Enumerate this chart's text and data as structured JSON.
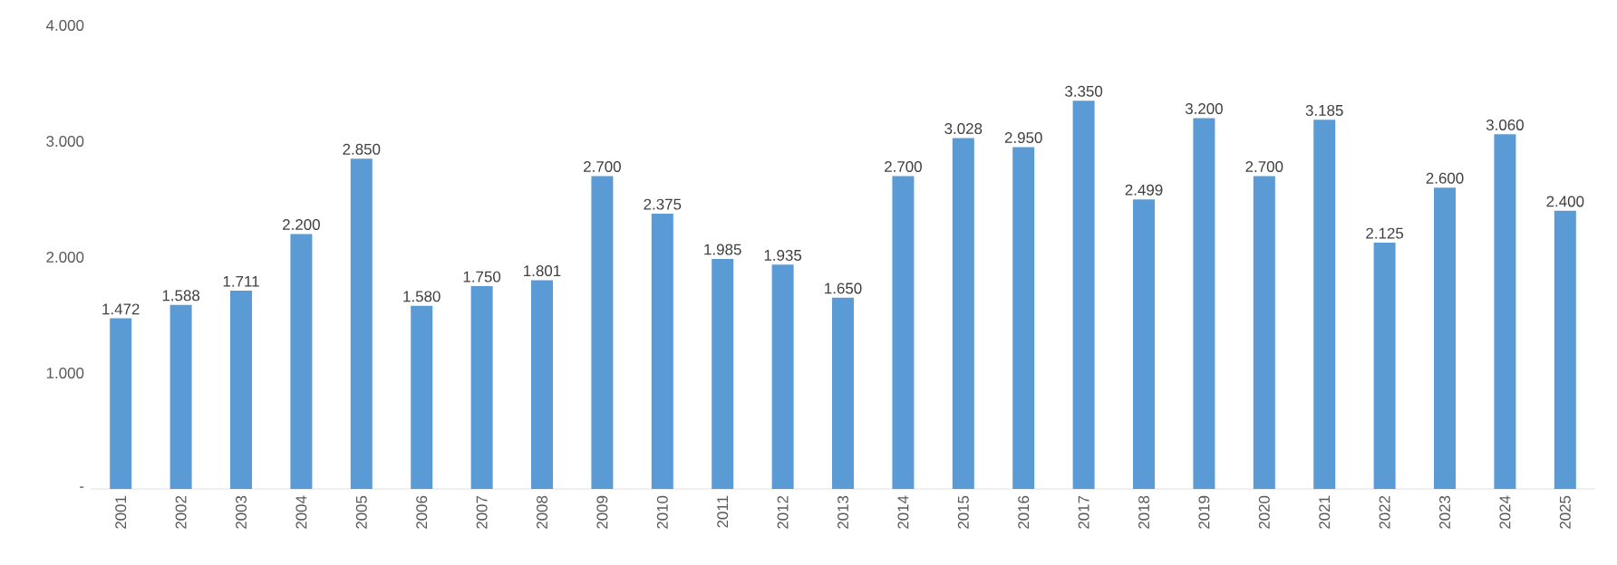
{
  "chart_data": {
    "type": "bar",
    "categories": [
      "2001",
      "2002",
      "2003",
      "2004",
      "2005",
      "2006",
      "2007",
      "2008",
      "2009",
      "2010",
      "2011",
      "2012",
      "2013",
      "2014",
      "2015",
      "2016",
      "2017",
      "2018",
      "2019",
      "2020",
      "2021",
      "2022",
      "2023",
      "2024",
      "2025"
    ],
    "values": [
      1472,
      1588,
      1711,
      2200,
      2850,
      1580,
      1750,
      1801,
      2700,
      2375,
      1985,
      1935,
      1650,
      2700,
      3028,
      2950,
      3350,
      2499,
      3200,
      2700,
      3185,
      2125,
      2600,
      3060,
      2400
    ],
    "value_labels": [
      "1.472",
      "1.588",
      "1.711",
      "2.200",
      "2.850",
      "1.580",
      "1.750",
      "1.801",
      "2.700",
      "2.375",
      "1.985",
      "1.935",
      "1.650",
      "2.700",
      "3.028",
      "2.950",
      "3.350",
      "2.499",
      "3.200",
      "2.700",
      "3.185",
      "2.125",
      "2.600",
      "3.060",
      "2.400"
    ],
    "color": "#5b9bd5",
    "ylim": [
      0,
      4000
    ],
    "yticks": [
      {
        "value": 0,
        "label": "-"
      },
      {
        "value": 1000,
        "label": "1.000"
      },
      {
        "value": 2000,
        "label": "2.000"
      },
      {
        "value": 3000,
        "label": "3.000"
      },
      {
        "value": 4000,
        "label": "4.000"
      }
    ],
    "grid": false
  }
}
